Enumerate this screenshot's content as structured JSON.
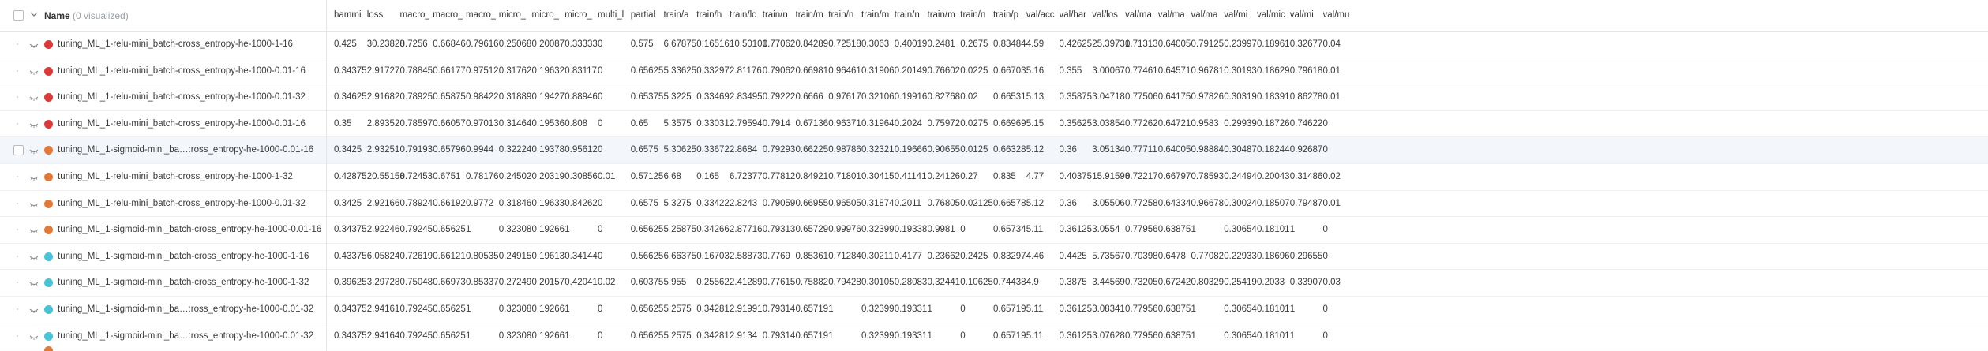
{
  "header": {
    "name_label": "Name",
    "name_suffix": "(0 visualized)",
    "columns": [
      "hammi",
      "loss",
      "macro_",
      "macro_",
      "macro_",
      "micro_",
      "micro_",
      "micro_",
      "multi_l",
      "partial",
      "train/a",
      "train/h",
      "train/lc",
      "train/n",
      "train/m",
      "train/n",
      "train/m",
      "train/n",
      "train/m",
      "train/n",
      "train/p",
      "val/acc",
      "val/har",
      "val/los",
      "val/ma",
      "val/ma",
      "val/ma",
      "val/mi",
      "val/mic",
      "val/mi",
      "val/mu"
    ]
  },
  "colors": {
    "red": "#d93b3b",
    "orange": "#e07b3c",
    "teal": "#4cc2d6"
  },
  "rows": [
    {
      "name": "tuning_ML_1-relu-mini_batch-cross_entropy-he-1000-1-16",
      "color": "red",
      "values": [
        "0.425",
        "30.23828",
        "0.7256",
        "0.66846",
        "0.79616",
        "0.25068",
        "0.20087",
        "0.33333",
        "0",
        "0.575",
        "6.67875",
        "0.16516",
        "10.50101",
        "0.77062",
        "0.84289",
        "0.72518",
        "0.3063",
        "0.40019",
        "0.2481",
        "0.2675",
        "0.83484",
        "4.59",
        "0.42625",
        "25.39731",
        "0.71313",
        "0.64005",
        "0.79125",
        "0.23997",
        "0.18961",
        "0.32677",
        "0.04"
      ]
    },
    {
      "name": "tuning_ML_1-relu-mini_batch-cross_entropy-he-1000-0.01-16",
      "color": "red",
      "values": [
        "0.34375",
        "2.91727",
        "0.78845",
        "0.66177",
        "0.97512",
        "0.31762",
        "0.19632",
        "0.83117",
        "0",
        "0.65625",
        "5.33625",
        "0.33297",
        "2.81176",
        "0.79062",
        "0.66981",
        "0.96461",
        "0.31906",
        "0.20149",
        "0.76602",
        "0.0225",
        "0.66703",
        "5.16",
        "0.355",
        "3.00067",
        "0.77461",
        "0.64571",
        "0.96781",
        "0.30193",
        "0.18629",
        "0.79618",
        "0.01"
      ]
    },
    {
      "name": "tuning_ML_1-relu-mini_batch-cross_entropy-he-1000-0.01-32",
      "color": "red",
      "values": [
        "0.34625",
        "2.91682",
        "0.78925",
        "0.65875",
        "0.98422",
        "0.31889",
        "0.19427",
        "0.88946",
        "0",
        "0.65375",
        "5.3225",
        "0.33469",
        "2.83495",
        "0.79222",
        "0.6666",
        "0.97617",
        "0.32106",
        "0.19916",
        "0.82768",
        "0.02",
        "0.66531",
        "5.13",
        "0.35875",
        "3.04718",
        "0.77506",
        "0.64175",
        "0.97826",
        "0.30319",
        "0.18391",
        "0.86278",
        "0.01"
      ]
    },
    {
      "name": "tuning_ML_1-relu-mini_batch-cross_entropy-he-1000-0.01-16",
      "color": "red",
      "values": [
        "0.35",
        "2.89352",
        "0.78597",
        "0.66057",
        "0.97013",
        "0.31464",
        "0.19536",
        "0.808",
        "0",
        "0.65",
        "5.3575",
        "0.33031",
        "2.79594",
        "0.7914",
        "0.67136",
        "0.96371",
        "0.31964",
        "0.2024",
        "0.75972",
        "0.0275",
        "0.66969",
        "5.15",
        "0.35625",
        "3.03854",
        "0.77262",
        "0.64721",
        "0.9583",
        "0.29939",
        "0.18726",
        "0.74622",
        "0"
      ]
    },
    {
      "name": "tuning_ML_1-sigmoid-mini_ba…:ross_entropy-he-1000-0.01-16",
      "color": "orange",
      "values": [
        "0.3425",
        "2.93251",
        "0.79193",
        "0.65796",
        "0.9944",
        "0.32224",
        "0.19378",
        "0.95612",
        "0",
        "0.6575",
        "5.30625",
        "0.33672",
        "2.8684",
        "0.79293",
        "0.66225",
        "0.98786",
        "0.32321",
        "0.19666",
        "0.90655",
        "0.0125",
        "0.66328",
        "5.12",
        "0.36",
        "3.05134",
        "0.77711",
        "0.64005",
        "0.98884",
        "0.30487",
        "0.18244",
        "0.92687",
        "0"
      ]
    },
    {
      "name": "tuning_ML_1-relu-mini_batch-cross_entropy-he-1000-1-32",
      "color": "orange",
      "values": [
        "0.42875",
        "20.55158",
        "0.72453",
        "0.6751",
        "0.78176",
        "0.24502",
        "0.20319",
        "0.30856",
        "0.01",
        "0.57125",
        "6.68",
        "0.165",
        "6.72377",
        "0.77812",
        "0.84921",
        "0.71801",
        "0.30415",
        "0.41141",
        "0.24126",
        "0.27",
        "0.835",
        "4.77",
        "0.40375",
        "15.91598",
        "0.72217",
        "0.66797",
        "0.78593",
        "0.24494",
        "0.20043",
        "0.31486",
        "0.02"
      ]
    },
    {
      "name": "tuning_ML_1-relu-mini_batch-cross_entropy-he-1000-0.01-32",
      "color": "orange",
      "values": [
        "0.3425",
        "2.92166",
        "0.78924",
        "0.66192",
        "0.9772",
        "0.31846",
        "0.19633",
        "0.84262",
        "0",
        "0.6575",
        "5.3275",
        "0.33422",
        "2.8243",
        "0.79059",
        "0.66955",
        "0.96505",
        "0.31874",
        "0.2011",
        "0.76805",
        "0.02125",
        "0.66578",
        "5.12",
        "0.36",
        "3.05506",
        "0.77258",
        "0.64334",
        "0.96678",
        "0.30024",
        "0.18507",
        "0.79487",
        "0.01"
      ]
    },
    {
      "name": "tuning_ML_1-sigmoid-mini_batch-cross_entropy-he-1000-0.01-16",
      "color": "orange",
      "values": [
        "0.34375",
        "2.92246",
        "0.79245",
        "0.65625",
        "1",
        "0.32308",
        "0.19266",
        "1",
        "0",
        "0.65625",
        "5.25875",
        "0.34266",
        "2.87716",
        "0.79313",
        "0.65729",
        "0.99976",
        "0.32399",
        "0.19338",
        "0.9981",
        "0",
        "0.65734",
        "5.11",
        "0.36125",
        "3.0554",
        "0.77956",
        "0.63875",
        "1",
        "0.30654",
        "0.18101",
        "1",
        "0"
      ]
    },
    {
      "name": "tuning_ML_1-sigmoid-mini_batch-cross_entropy-he-1000-1-16",
      "color": "teal",
      "values": [
        "0.43375",
        "6.05824",
        "0.72619",
        "0.66121",
        "0.80535",
        "0.24915",
        "0.19613",
        "0.34144",
        "0",
        "0.56625",
        "6.66375",
        "0.16703",
        "2.58873",
        "0.7769",
        "0.85361",
        "0.71284",
        "0.30211",
        "0.4177",
        "0.23662",
        "0.2425",
        "0.83297",
        "4.46",
        "0.4425",
        "5.73567",
        "0.70398",
        "0.6478",
        "0.77082",
        "0.22933",
        "0.18696",
        "0.29655",
        "0"
      ]
    },
    {
      "name": "tuning_ML_1-sigmoid-mini_batch-cross_entropy-he-1000-1-32",
      "color": "teal",
      "values": [
        "0.39625",
        "3.29728",
        "0.75048",
        "0.66973",
        "0.85337",
        "0.27249",
        "0.20157",
        "0.42041",
        "0.02",
        "0.60375",
        "5.955",
        "0.25562",
        "2.41289",
        "0.77615",
        "0.75882",
        "0.79428",
        "0.30105",
        "0.28083",
        "0.32441",
        "0.10625",
        "0.74438",
        "4.9",
        "0.3875",
        "3.44569",
        "0.73205",
        "0.67242",
        "0.80329",
        "0.25419",
        "0.2033",
        "0.33907",
        "0.03"
      ]
    },
    {
      "name": "tuning_ML_1-sigmoid-mini_ba…:ross_entropy-he-1000-0.01-32",
      "color": "teal",
      "values": [
        "0.34375",
        "2.94161",
        "0.79245",
        "0.65625",
        "1",
        "0.32308",
        "0.19266",
        "1",
        "0",
        "0.65625",
        "5.2575",
        "0.34281",
        "2.91991",
        "0.79314",
        "0.65719",
        "1",
        "0.32399",
        "0.19331",
        "1",
        "0",
        "0.65719",
        "5.11",
        "0.36125",
        "3.08341",
        "0.77956",
        "0.63875",
        "1",
        "0.30654",
        "0.18101",
        "1",
        "0"
      ]
    },
    {
      "name": "tuning_ML_1-sigmoid-mini_ba…:ross_entropy-he-1000-0.01-32",
      "color": "teal",
      "values": [
        "0.34375",
        "2.94164",
        "0.79245",
        "0.65625",
        "1",
        "0.32308",
        "0.19266",
        "1",
        "0",
        "0.65625",
        "5.2575",
        "0.34281",
        "2.9134",
        "0.79314",
        "0.65719",
        "1",
        "0.32399",
        "0.19331",
        "1",
        "0",
        "0.65719",
        "5.11",
        "0.36125",
        "3.07628",
        "0.77956",
        "0.63875",
        "1",
        "0.30654",
        "0.18101",
        "1",
        "0"
      ]
    }
  ]
}
